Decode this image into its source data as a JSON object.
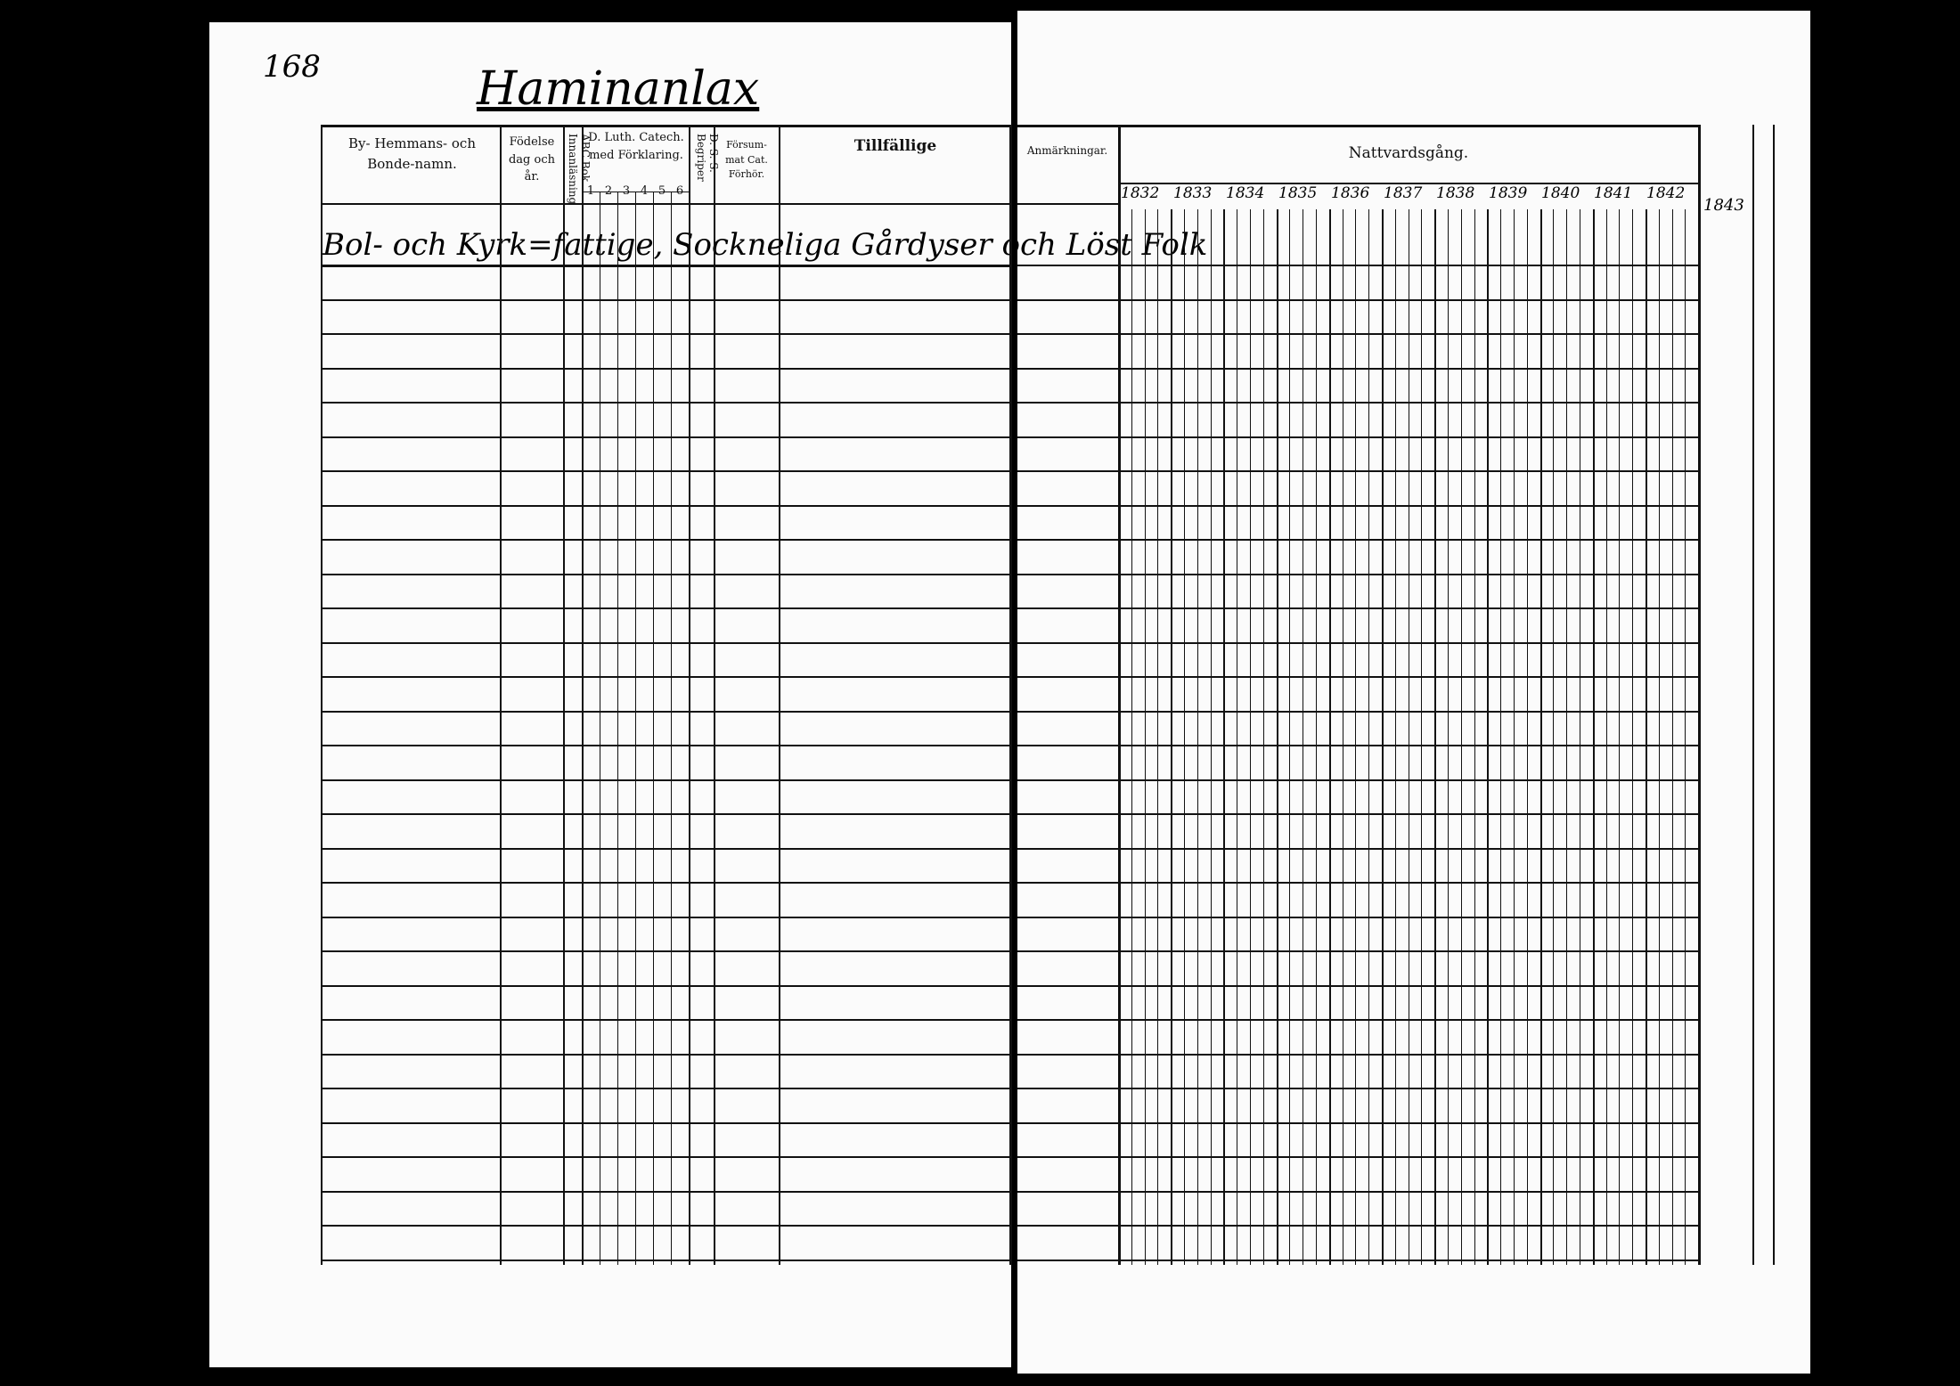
{
  "page_number": "168",
  "village_name": "Haminanlax",
  "left_headers": {
    "name": "By- Hemmans- och Bonde-namn.",
    "birth": "Födelse dag och år.",
    "abc": "ABC Bok Innanläsning",
    "catech": "D. Luth. Catech. med Förklaring.",
    "catech_parts": [
      "1",
      "2",
      "3",
      "4",
      "5",
      "6"
    ],
    "dss": "D. S. S. Begriper",
    "forsummat": "Försum-mat Cat. Förhör.",
    "tillfallige": "Tillfällige"
  },
  "section_heading": "Bol- och Kyrk=fattige, Sockneliga Gårdyser och Löst Folk",
  "right_headers": {
    "anmarkningar": "Anmärkningar.",
    "nattvard": "Nattvardsgång.",
    "years": [
      "1832",
      "1833",
      "1834",
      "1835",
      "1836",
      "1837",
      "1838",
      "1839",
      "1840",
      "1841",
      "1842"
    ],
    "extra_year": "1843"
  }
}
